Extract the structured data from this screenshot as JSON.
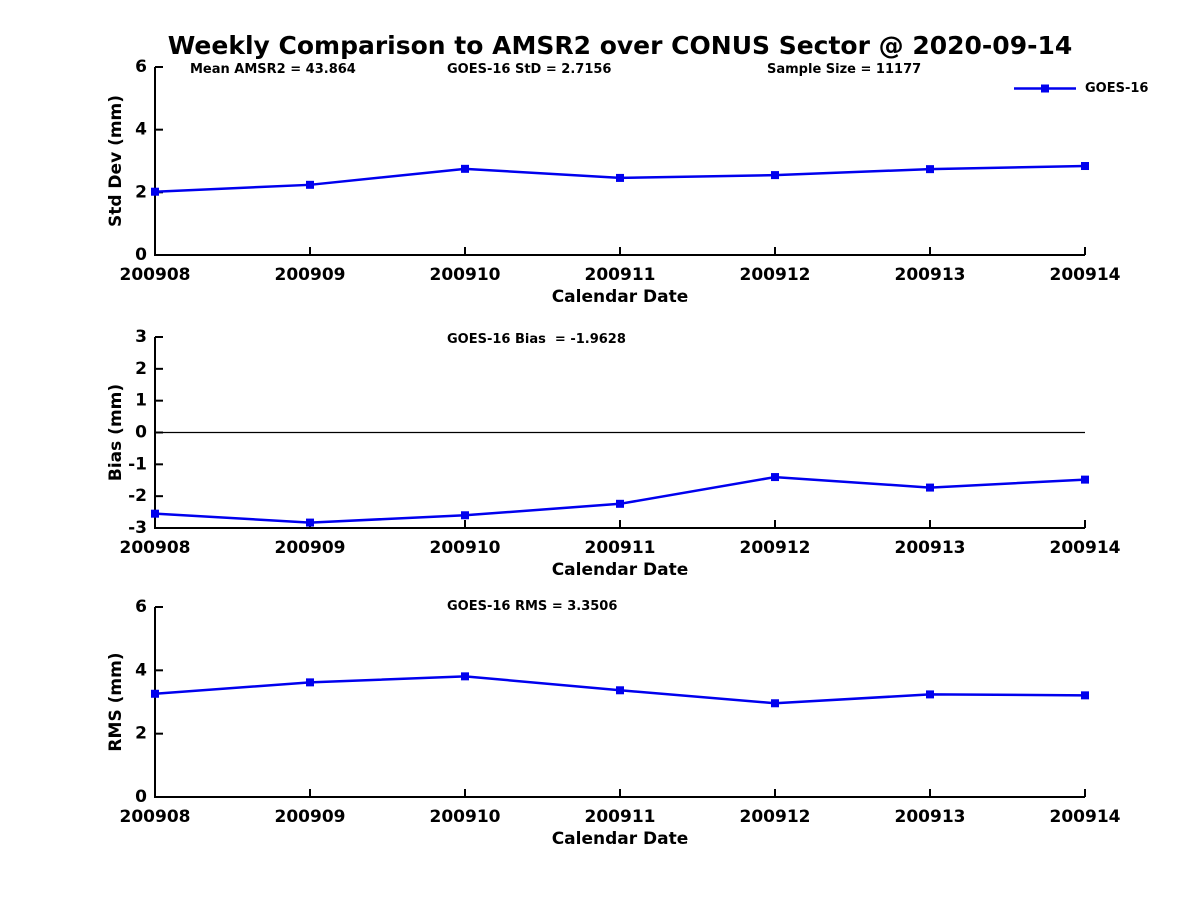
{
  "header": {
    "title": "Weekly Comparison to AMSR2 over CONUS Sector @ 2020-09-14"
  },
  "legend": {
    "label": "GOES-16"
  },
  "colors": {
    "line": "#0000EE",
    "axis": "#000000",
    "zero_line": "#000000",
    "background": "#FFFFFF",
    "text": "#000000"
  },
  "chart_data": [
    {
      "type": "line",
      "name": "std-dev-vs-date",
      "title": "",
      "xlabel": "Calendar Date",
      "ylabel": "Std Dev (mm)",
      "ylim": [
        0,
        6
      ],
      "yticks": [
        0,
        2,
        4,
        6
      ],
      "grid": false,
      "marker": "square",
      "zero_line": false,
      "legend_position": "top-right",
      "categories": [
        "200908",
        "200909",
        "200910",
        "200911",
        "200912",
        "200913",
        "200914"
      ],
      "series": [
        {
          "name": "GOES-16",
          "values": [
            2.02,
            2.24,
            2.75,
            2.46,
            2.55,
            2.74,
            2.84
          ]
        }
      ],
      "annotations": [
        {
          "text": "Mean AMSR2 = 43.864"
        },
        {
          "text": "GOES-16 StD = 2.7156"
        },
        {
          "text": "Sample Size = 11177"
        }
      ]
    },
    {
      "type": "line",
      "name": "bias-vs-date",
      "title": "",
      "xlabel": "Calendar Date",
      "ylabel": "Bias (mm)",
      "ylim": [
        -3,
        3
      ],
      "yticks": [
        3,
        2,
        1,
        0,
        -1,
        -2,
        -3
      ],
      "grid": false,
      "marker": "square",
      "zero_line": true,
      "categories": [
        "200908",
        "200909",
        "200910",
        "200911",
        "200912",
        "200913",
        "200914"
      ],
      "series": [
        {
          "name": "GOES-16",
          "values": [
            -2.55,
            -2.83,
            -2.6,
            -2.24,
            -1.4,
            -1.73,
            -1.48
          ]
        }
      ],
      "annotations": [
        {
          "text": "GOES-16 Bias  = -1.9628"
        }
      ]
    },
    {
      "type": "line",
      "name": "rms-vs-date",
      "title": "",
      "xlabel": "Calendar Date",
      "ylabel": "RMS (mm)",
      "ylim": [
        0,
        6
      ],
      "yticks": [
        0,
        2,
        4,
        6
      ],
      "grid": false,
      "marker": "square",
      "zero_line": false,
      "categories": [
        "200908",
        "200909",
        "200910",
        "200911",
        "200912",
        "200913",
        "200914"
      ],
      "series": [
        {
          "name": "GOES-16",
          "values": [
            3.26,
            3.62,
            3.81,
            3.37,
            2.96,
            3.24,
            3.21
          ]
        }
      ],
      "annotations": [
        {
          "text": "GOES-16 RMS = 3.3506"
        }
      ]
    }
  ]
}
